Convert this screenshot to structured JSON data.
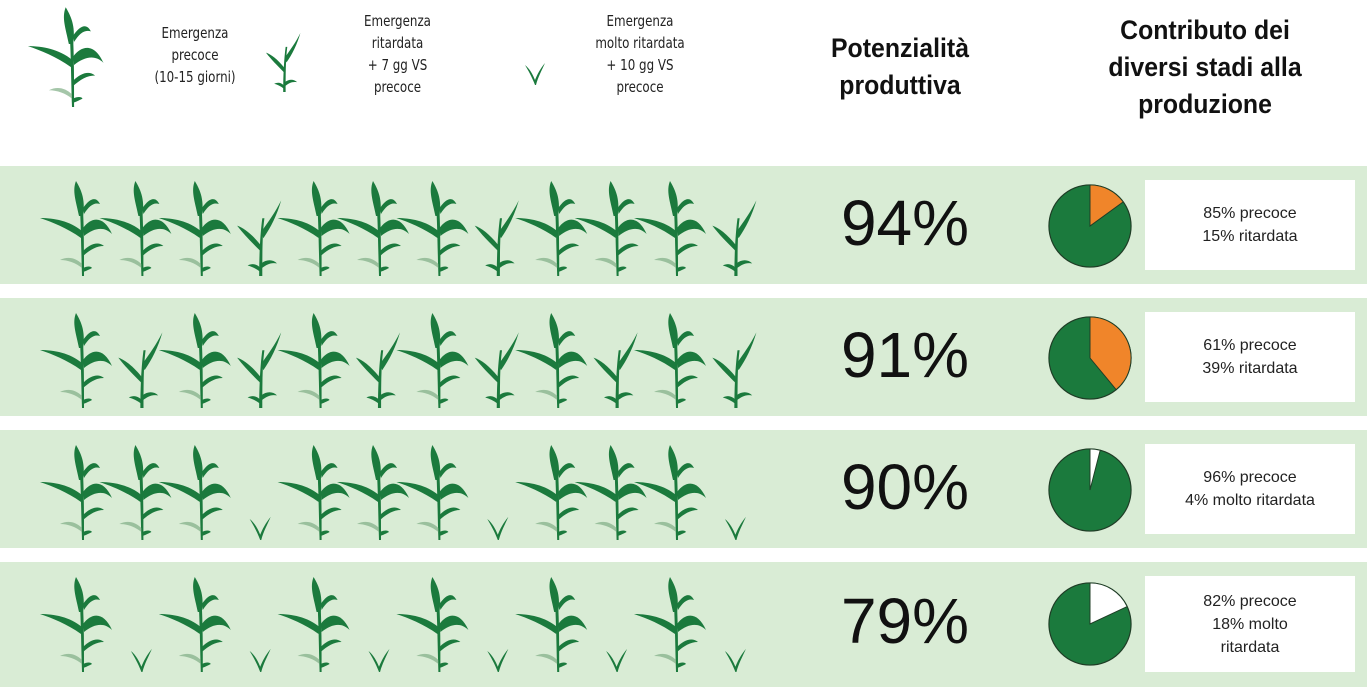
{
  "legend": [
    {
      "icon": "corn-plant-large-icon",
      "lines": [
        "Emergenza",
        "precoce",
        "(10-15 giorni)"
      ]
    },
    {
      "icon": "corn-plant-medium-icon",
      "lines": [
        "Emergenza",
        "ritardata",
        "+ 7 gg VS",
        "precoce"
      ]
    },
    {
      "icon": "corn-sprout-small-icon",
      "lines": [
        "Emergenza",
        "molto ritardata",
        "+ 10 gg VS",
        "precoce"
      ]
    }
  ],
  "headers": {
    "potential": [
      "Potenzialità",
      "produttiva"
    ],
    "contribution": [
      "Contributo dei",
      "diversi stadi alla",
      "produzione"
    ]
  },
  "colors": {
    "precoce": "#1b7a3d",
    "ritardata": "#f0852a",
    "molto_ritardata": "#ffffff",
    "row_bg": "#d9ecd5"
  },
  "rows": [
    {
      "plants": "PPPRPPPRPPPR",
      "potential": "94%",
      "pie": {
        "precoce": 85,
        "other": 15,
        "other_type": "ritardata"
      },
      "label": [
        "85% precoce",
        "15% ritardata"
      ]
    },
    {
      "plants": "PRPRPRPRPRPR",
      "potential": "91%",
      "pie": {
        "precoce": 61,
        "other": 39,
        "other_type": "ritardata"
      },
      "label": [
        "61% precoce",
        "39% ritardata"
      ]
    },
    {
      "plants": "PPPVPPPVPPPV",
      "potential": "90%",
      "pie": {
        "precoce": 96,
        "other": 4,
        "other_type": "molto_ritardata"
      },
      "label": [
        "96% precoce",
        "4% molto ritardata"
      ]
    },
    {
      "plants": "PVPVPVPVPVPV",
      "potential": "79%",
      "pie": {
        "precoce": 82,
        "other": 18,
        "other_type": "molto_ritardata"
      },
      "label": [
        "82% precoce",
        "18% molto",
        "ritardata"
      ]
    }
  ]
}
